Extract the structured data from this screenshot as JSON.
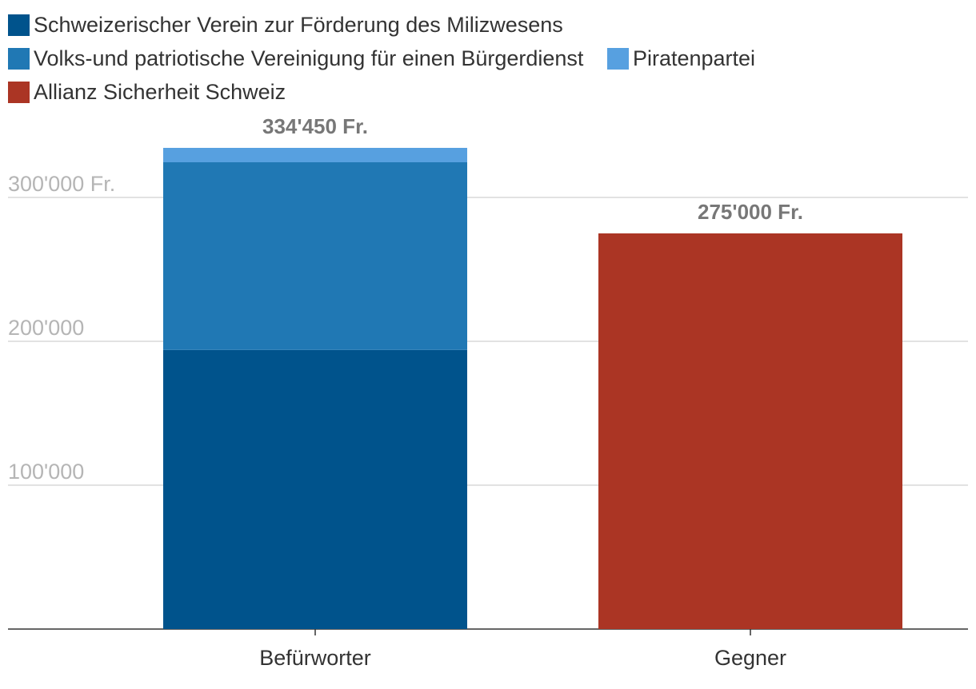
{
  "chart_data": {
    "type": "bar",
    "stacked": true,
    "categories": [
      "Befürworter",
      "Gegner"
    ],
    "series": [
      {
        "name": "Schweizerischer Verein zur Förderung des Milizwesens",
        "color": "#00538c",
        "values": [
          194000,
          0
        ]
      },
      {
        "name": "Volks-und patriotische Vereinigung für einen Bürgerdienst",
        "color": "#2078b4",
        "values": [
          130450,
          0
        ]
      },
      {
        "name": "Piratenpartei",
        "color": "#57a0e0",
        "values": [
          10000,
          0
        ]
      },
      {
        "name": "Allianz Sicherheit Schweiz",
        "color": "#ab3524",
        "values": [
          0,
          275000
        ]
      }
    ],
    "totals": [
      "334'450 Fr.",
      "275'000 Fr."
    ],
    "yticks": [
      {
        "value": 100000,
        "label": "100'000"
      },
      {
        "value": 200000,
        "label": "200'000"
      },
      {
        "value": 300000,
        "label": "300'000 Fr."
      }
    ],
    "ylim": [
      0,
      300000
    ],
    "grid": true,
    "legend_position": "top"
  }
}
